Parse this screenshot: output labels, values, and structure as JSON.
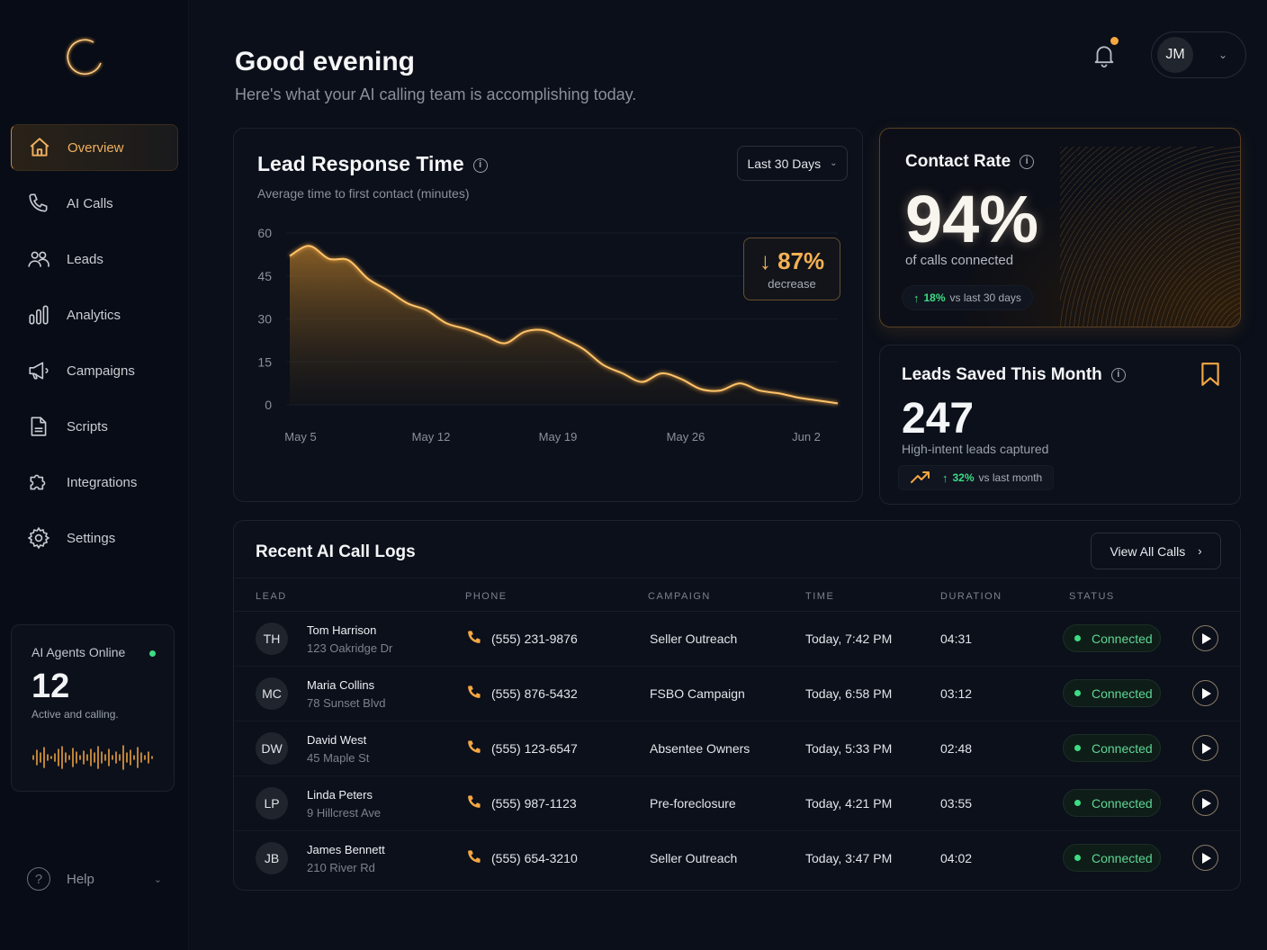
{
  "sidebar": {
    "logo": "eclipse-logo",
    "items": [
      {
        "label": "Overview",
        "icon": "home-icon",
        "active": true
      },
      {
        "label": "AI Calls",
        "icon": "phone-icon"
      },
      {
        "label": "Leads",
        "icon": "users-icon"
      },
      {
        "label": "Analytics",
        "icon": "bar-chart-icon"
      },
      {
        "label": "Campaigns",
        "icon": "megaphone-icon"
      },
      {
        "label": "Scripts",
        "icon": "document-icon"
      },
      {
        "label": "Integrations",
        "icon": "puzzle-icon"
      },
      {
        "label": "Settings",
        "icon": "gear-icon"
      }
    ],
    "agents": {
      "title": "AI Agents Online",
      "count": "12",
      "subtitle": "Active and calling.",
      "status_color": "#3ddc84"
    },
    "help": {
      "label": "Help"
    }
  },
  "header": {
    "greeting": "Good evening",
    "subtitle": "Here's what your AI calling team is accomplishing today.",
    "user_initials": "JM",
    "notification_dot_color": "#f5a742"
  },
  "lead_response": {
    "title": "Lead Response Time",
    "subtitle": "Average time to first contact (minutes)",
    "range_select": "Last 30 Days",
    "change_value": "↓ 87%",
    "change_label": "decrease"
  },
  "chart_data": {
    "type": "area",
    "title": "Lead Response Time",
    "subtitle": "Average time to first contact (minutes)",
    "xlabel": "",
    "ylabel": "minutes",
    "ylim": [
      0,
      60
    ],
    "yticks": [
      0,
      15,
      30,
      45,
      60
    ],
    "xticks": [
      "May 5",
      "May 12",
      "May 19",
      "May 26",
      "Jun 2"
    ],
    "x": [
      "May 5",
      "May 6",
      "May 7",
      "May 8",
      "May 9",
      "May 10",
      "May 11",
      "May 12",
      "May 13",
      "May 14",
      "May 15",
      "May 16",
      "May 17",
      "May 18",
      "May 19",
      "May 20",
      "May 21",
      "May 22",
      "May 23",
      "May 24",
      "May 25",
      "May 26",
      "May 27",
      "May 28",
      "May 29",
      "May 30",
      "May 31",
      "Jun 1",
      "Jun 2"
    ],
    "values": [
      52,
      55.5,
      51,
      50.5,
      44,
      40,
      35.5,
      33,
      28.5,
      26.5,
      24,
      21.5,
      25.5,
      26,
      23,
      19.5,
      14,
      11,
      8,
      11,
      9,
      5.5,
      5,
      7.5,
      5,
      4,
      2.5,
      1.5,
      0.5
    ],
    "grid": true,
    "color": "#f5b052",
    "annotation": "↓ 87% decrease"
  },
  "contact_rate": {
    "title": "Contact Rate",
    "value": "94%",
    "subtitle": "of calls connected",
    "change_pct": "18%",
    "change_label": "vs last 30 days"
  },
  "leads_saved": {
    "title": "Leads Saved This Month",
    "value": "247",
    "subtitle": "High-intent leads captured",
    "change_pct": "32%",
    "change_label": "vs last month"
  },
  "call_logs": {
    "title": "Recent AI Call Logs",
    "view_all": "View All Calls",
    "columns": [
      "LEAD",
      "PHONE",
      "CAMPAIGN",
      "TIME",
      "DURATION",
      "STATUS"
    ],
    "rows": [
      {
        "initials": "TH",
        "name": "Tom Harrison",
        "address": "123 Oakridge Dr",
        "phone": "(555) 231-9876",
        "campaign": "Seller Outreach",
        "time": "Today, 7:42 PM",
        "duration": "04:31",
        "status": "Connected"
      },
      {
        "initials": "MC",
        "name": "Maria Collins",
        "address": "78 Sunset Blvd",
        "phone": "(555) 876-5432",
        "campaign": "FSBO Campaign",
        "time": "Today, 6:58 PM",
        "duration": "03:12",
        "status": "Connected"
      },
      {
        "initials": "DW",
        "name": "David West",
        "address": "45 Maple St",
        "phone": "(555) 123-6547",
        "campaign": "Absentee Owners",
        "time": "Today, 5:33 PM",
        "duration": "02:48",
        "status": "Connected"
      },
      {
        "initials": "LP",
        "name": "Linda Peters",
        "address": "9 Hillcrest Ave",
        "phone": "(555) 987-1123",
        "campaign": "Pre-foreclosure",
        "time": "Today, 4:21 PM",
        "duration": "03:55",
        "status": "Connected"
      },
      {
        "initials": "JB",
        "name": "James Bennett",
        "address": "210 River Rd",
        "phone": "(555) 654-3210",
        "campaign": "Seller Outreach",
        "time": "Today, 3:47 PM",
        "duration": "04:02",
        "status": "Connected"
      }
    ]
  },
  "colors": {
    "accent": "#f5b052",
    "success": "#3ddc84",
    "background": "#0a0f19"
  }
}
